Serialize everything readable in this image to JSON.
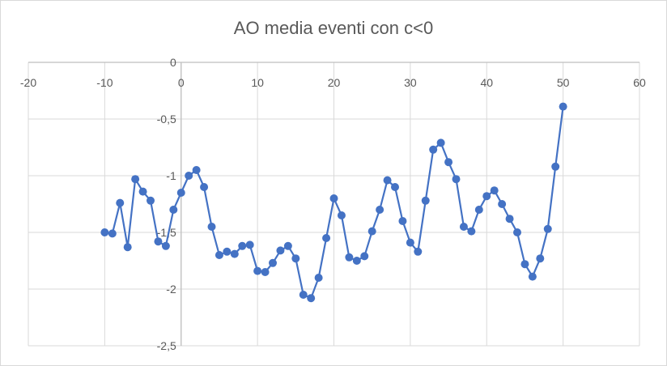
{
  "chart_data": {
    "type": "scatter",
    "title": "AO media eventi con c<0",
    "xlabel": "",
    "ylabel": "",
    "xlim": [
      -20,
      60
    ],
    "ylim": [
      -2.5,
      0
    ],
    "x_ticks": [
      -20,
      -10,
      0,
      10,
      20,
      30,
      40,
      50,
      60
    ],
    "x_tick_labels": [
      "-20",
      "-10",
      "0",
      "10",
      "20",
      "30",
      "40",
      "50",
      "60"
    ],
    "y_ticks": [
      0,
      -0.5,
      -1,
      -1.5,
      -2,
      -2.5
    ],
    "y_tick_labels": [
      "0",
      "-0,5",
      "-1",
      "-1,5",
      "-2",
      "-2,5"
    ],
    "grid": true,
    "legend": "none",
    "line_color": "#4472c4",
    "grid_color": "#d9d9d9",
    "series": [
      {
        "marker": "circle",
        "connected": true,
        "x": [
          -10,
          -9,
          -8,
          -7,
          -6,
          -5,
          -4,
          -3,
          -2,
          -1,
          0,
          1,
          2,
          3,
          4,
          5,
          6,
          7,
          8,
          9,
          10,
          11,
          12,
          13,
          14,
          15,
          16,
          17,
          18,
          19,
          20,
          21,
          22,
          23,
          24,
          25,
          26,
          27,
          28,
          29,
          30,
          31,
          32,
          33,
          34,
          35,
          36,
          37,
          38,
          39,
          40,
          41,
          42,
          43,
          44,
          45,
          46,
          47,
          48,
          49,
          50
        ],
        "y": [
          -1.5,
          -1.51,
          -1.24,
          -1.63,
          -1.03,
          -1.14,
          -1.22,
          -1.58,
          -1.62,
          -1.3,
          -1.15,
          -1.0,
          -0.95,
          -1.1,
          -1.45,
          -1.7,
          -1.67,
          -1.69,
          -1.62,
          -1.61,
          -1.84,
          -1.85,
          -1.77,
          -1.66,
          -1.62,
          -1.73,
          -2.05,
          -2.08,
          -1.9,
          -1.55,
          -1.2,
          -1.35,
          -1.72,
          -1.75,
          -1.71,
          -1.49,
          -1.3,
          -1.04,
          -1.1,
          -1.4,
          -1.59,
          -1.67,
          -1.22,
          -0.77,
          -0.71,
          -0.88,
          -1.03,
          -1.45,
          -1.49,
          -1.3,
          -1.18,
          -1.13,
          -1.25,
          -1.38,
          -1.5,
          -1.78,
          -1.89,
          -1.73,
          -1.47,
          -0.92,
          -0.39
        ]
      }
    ]
  }
}
